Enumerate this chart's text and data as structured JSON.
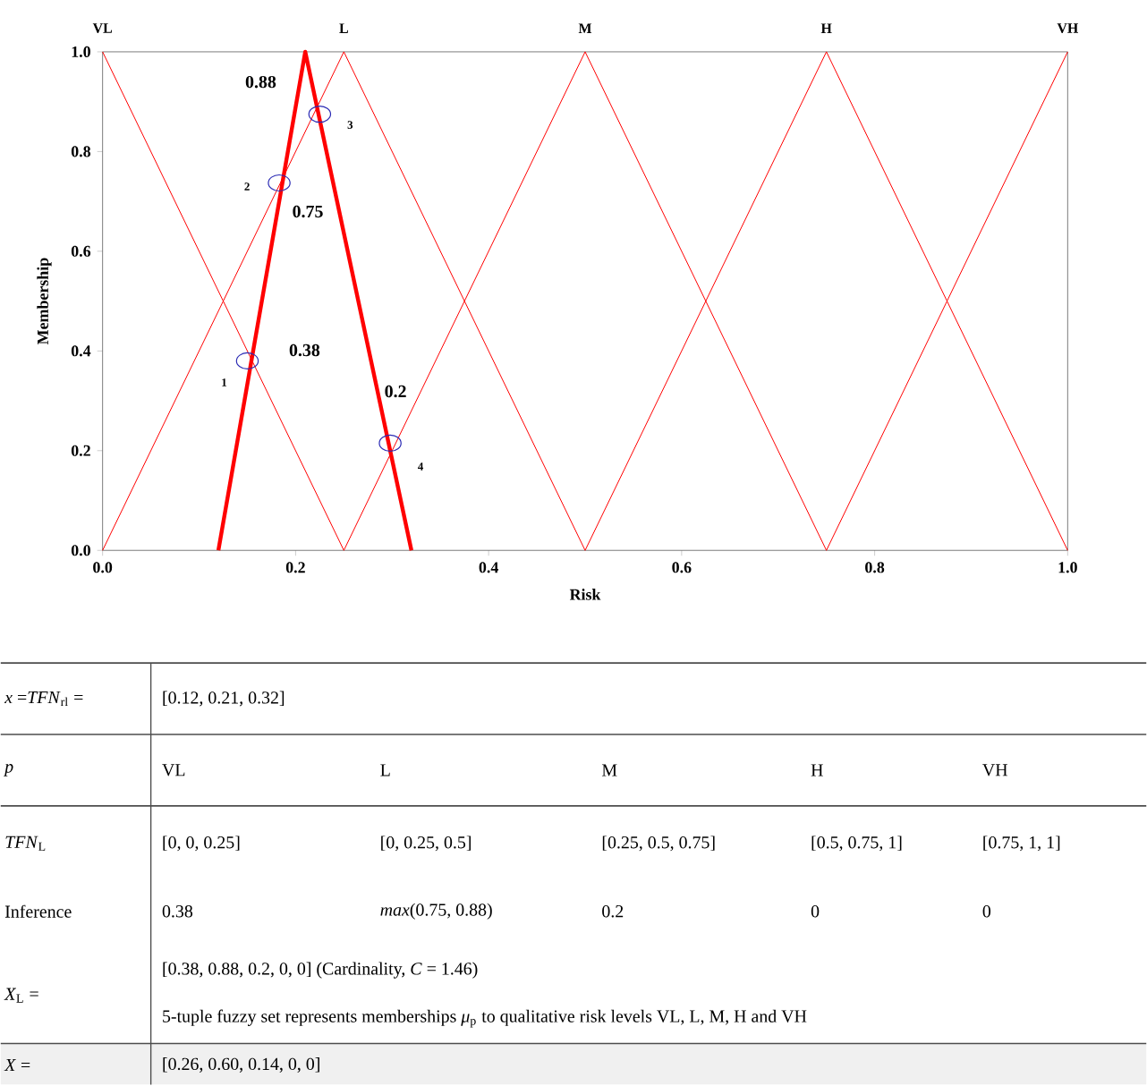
{
  "chart_data": {
    "type": "line",
    "xlabel": "Risk",
    "ylabel": "Membership",
    "xlim": [
      0,
      1
    ],
    "ylim": [
      0,
      1
    ],
    "xticks": [
      {
        "value": 0,
        "label": "0.0"
      },
      {
        "value": 0.2,
        "label": "0.2"
      },
      {
        "value": 0.4,
        "label": "0.4"
      },
      {
        "value": 0.6,
        "label": "0.6"
      },
      {
        "value": 0.8,
        "label": "0.8"
      },
      {
        "value": 1,
        "label": "1.0"
      }
    ],
    "yticks": [
      {
        "value": 0,
        "label": "0.0"
      },
      {
        "value": 0.2,
        "label": "0.2"
      },
      {
        "value": 0.4,
        "label": "0.4"
      },
      {
        "value": 0.6,
        "label": "0.6"
      },
      {
        "value": 0.8,
        "label": "0.8"
      },
      {
        "value": 1,
        "label": "1.0"
      }
    ],
    "series": [
      {
        "name": "VL",
        "color": "#ff0000",
        "x": [
          0,
          0.25
        ],
        "values": [
          1,
          0
        ]
      },
      {
        "name": "L",
        "color": "#ff0000",
        "x": [
          0,
          0.25,
          0.5
        ],
        "values": [
          0,
          1,
          0
        ]
      },
      {
        "name": "M",
        "color": "#ff0000",
        "x": [
          0.25,
          0.5,
          0.75
        ],
        "values": [
          0,
          1,
          0
        ]
      },
      {
        "name": "H",
        "color": "#ff0000",
        "x": [
          0.5,
          0.75,
          1
        ],
        "values": [
          0,
          1,
          0
        ]
      },
      {
        "name": "VH",
        "color": "#ff0000",
        "x": [
          0.75,
          1
        ],
        "values": [
          0,
          1
        ]
      },
      {
        "color": "#ff0000",
        "x": [
          0.12,
          0.21,
          0.32
        ],
        "values": [
          0,
          1,
          0
        ]
      },
      {
        "type": "scatter",
        "marker": "circle",
        "color": "#2a2ab4",
        "x": [
          0.15,
          0.183,
          0.225,
          0.298
        ],
        "values": [
          0.38,
          0.737,
          0.875,
          0.215
        ]
      }
    ],
    "annotations": [
      {
        "text": "0.88",
        "x": 0.225,
        "y": 0.875
      },
      {
        "text": "0.75",
        "x": 0.183,
        "y": 0.737
      },
      {
        "text": "0.38",
        "x": 0.15,
        "y": 0.38
      },
      {
        "text": "0.2",
        "x": 0.298,
        "y": 0.215
      },
      {
        "text": "1",
        "x": 0.15,
        "y": 0.38
      },
      {
        "text": "2",
        "x": 0.183,
        "y": 0.737
      },
      {
        "text": "3",
        "x": 0.225,
        "y": 0.875
      },
      {
        "text": "4",
        "x": 0.298,
        "y": 0.215
      },
      "*x* =*TFN*$_{rl}$ =",
      "[0.12, 0.21, 0.32]",
      "*p*",
      "VL",
      "L",
      "M",
      "H",
      "VH",
      "*TFN*$_{L}$",
      "[0, 0, 0.25]",
      "[0, 0.25, 0.5]",
      "[0.25, 0.5, 0.75]",
      "[0.5, 0.75, 1]",
      "[0.75, 1, 1]",
      "Inference",
      "0.38",
      "*max*(0.75, 0.88)",
      "0.2",
      "0",
      "0",
      "*X*$_{L}$ =",
      "[0.38, 0.88, 0.2, 0, 0]  (Cardinality, *C* = 1.46)",
      "5-tuple fuzzy set represents memberships *μ*$_{p}$ to qualitative risk levels VL, L, M, H and VH",
      "*X* =",
      "[0.26, 0.60, 0.14, 0, 0]"
    ]
  }
}
